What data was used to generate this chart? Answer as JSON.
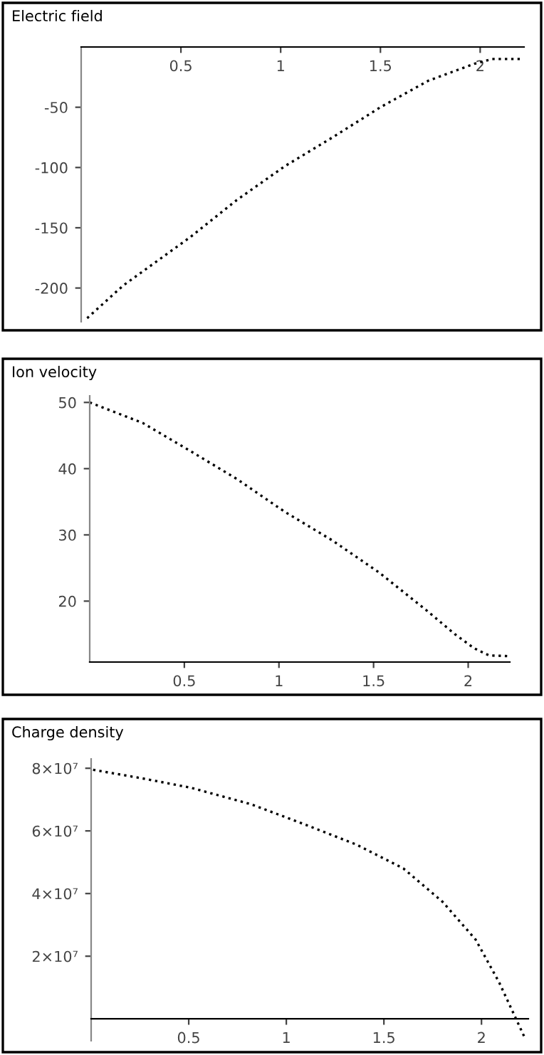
{
  "chart_data": [
    {
      "type": "line",
      "title": "Electric field",
      "x": [
        0.03,
        0.21,
        0.545,
        0.78,
        1.02,
        1.26,
        1.5,
        1.74,
        1.97,
        2.06,
        2.21
      ],
      "xlim": [
        0,
        2.22
      ],
      "xticks": [
        0.5,
        1,
        1.5,
        2
      ],
      "ylim": [
        -228,
        0
      ],
      "yticks": [
        -200,
        -150,
        -100,
        -50
      ],
      "series": [
        {
          "color": "#000000",
          "values": [
            -225,
            -198,
            -158,
            -127,
            -99,
            -75,
            -50,
            -28,
            -14,
            -10,
            -10
          ]
        }
      ],
      "line_style": "dotted",
      "marker": "none",
      "grid": false
    },
    {
      "type": "line",
      "title": "Ion velocity",
      "x": [
        0.0,
        0.28,
        0.53,
        0.78,
        1.03,
        1.28,
        1.53,
        1.78,
        1.93,
        2.03,
        2.11,
        2.21
      ],
      "xlim": [
        0,
        2.22
      ],
      "xticks": [
        0.5,
        1,
        1.5,
        2
      ],
      "ylim": [
        10.8,
        51
      ],
      "yticks": [
        20,
        30,
        40,
        50
      ],
      "series": [
        {
          "color": "#000000",
          "values": [
            50,
            46.9,
            42.7,
            38.4,
            33.5,
            29.2,
            24.3,
            18.6,
            15.0,
            12.9,
            11.8,
            11.7
          ]
        }
      ],
      "line_style": "dotted",
      "marker": "none",
      "grid": false
    },
    {
      "type": "line",
      "title": "Charge density",
      "x": [
        0.01,
        0.26,
        0.51,
        0.82,
        1.11,
        1.36,
        1.6,
        1.8,
        1.97,
        2.09,
        2.22
      ],
      "xlim": [
        0,
        2.24
      ],
      "xticks": [
        0.5,
        1,
        1.5,
        2
      ],
      "ylim": [
        -7000000,
        83000000
      ],
      "yticks": [
        {
          "value": 20000000,
          "label": "2×10⁷"
        },
        {
          "value": 40000000,
          "label": "4×10⁷"
        },
        {
          "value": 60000000,
          "label": "6×10⁷"
        },
        {
          "value": 80000000,
          "label": "8×10⁷"
        }
      ],
      "series": [
        {
          "color": "#000000",
          "values": [
            79500000,
            76800000,
            73800000,
            68500000,
            61700000,
            55600000,
            48000000,
            37400000,
            25300000,
            11700000,
            -5800000
          ]
        }
      ],
      "line_style": "dotted",
      "marker": "none",
      "grid": false
    }
  ]
}
